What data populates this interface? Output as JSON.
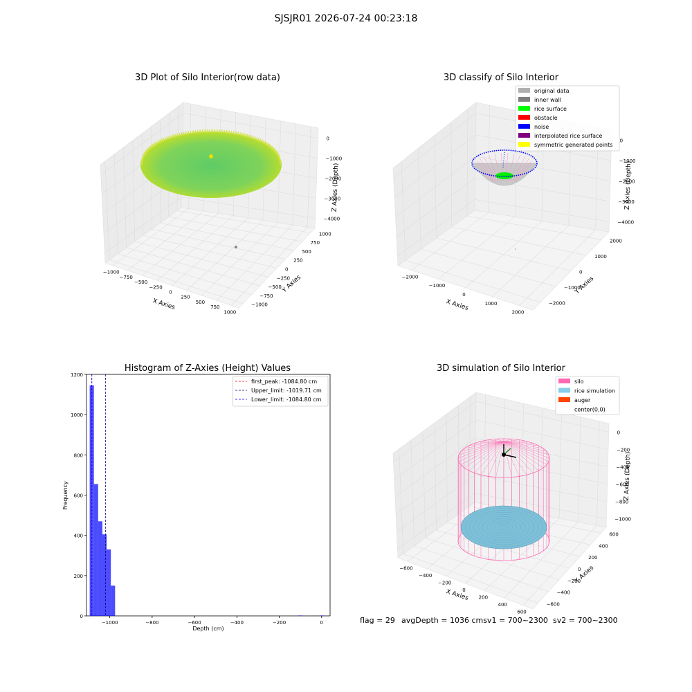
{
  "suptitle": "SJSJR01 2026-07-24 00:23:18",
  "footer": {
    "flag": "flag = 29",
    "avg": "avgDepth = 1036 cmsv1 = 700~2300",
    "sv2": "sv2 = 700~2300"
  },
  "chart_data": [
    {
      "type": "scatter",
      "title": "3D Plot of Silo Interior(row data)",
      "xlabel": "X Axies",
      "ylabel": "Y Axies",
      "zlabel": "Z Axies (Depth)",
      "xticks": [
        "−1000",
        "−750",
        "−500",
        "−250",
        "0",
        "250",
        "500",
        "750",
        "1000"
      ],
      "yticks": [
        "−1000",
        "−750",
        "−500",
        "−250",
        "0",
        "250",
        "500",
        "750",
        "1000"
      ],
      "zticks": [
        "0",
        "−1000",
        "−2000",
        "−3000",
        "−4000"
      ],
      "colors": {
        "center": "#5fcc66",
        "edge": "#c8e020",
        "outlier": "#888888"
      },
      "description_values": {
        "surface_depth_approx": -1050,
        "outlier_depth_approx": -4300
      }
    },
    {
      "type": "scatter",
      "title": "3D classify of Silo Interior",
      "xlabel": "X Axies",
      "ylabel": "Y Axies",
      "zlabel": "Z Axies (Depth)",
      "xticks": [
        "−2000",
        "−1000",
        "0",
        "1000",
        "2000"
      ],
      "yticks": [
        "−2000",
        "−1000",
        "0",
        "1000",
        "2000"
      ],
      "zticks": [
        "0",
        "−1000",
        "−2000",
        "−3000",
        "−4000"
      ],
      "legend": [
        {
          "label": "original data",
          "color": "#b0b0b0"
        },
        {
          "label": "inner wall",
          "color": "#808080"
        },
        {
          "label": "rice surface",
          "color": "#00ff00"
        },
        {
          "label": "obstacle",
          "color": "#ff0000"
        },
        {
          "label": "noise",
          "color": "#0000ff"
        },
        {
          "label": "interpolated rice surface",
          "color": "#800080"
        },
        {
          "label": "symmetric generated points",
          "color": "#ffff00"
        }
      ],
      "legend_position": "top-right"
    },
    {
      "type": "bar",
      "title": "Histogram of Z-Axies (Height) Values",
      "xlabel": "Depth (cm)",
      "ylabel": "Frequency",
      "xlim": [
        -1110,
        40
      ],
      "ylim": [
        0,
        1200
      ],
      "xticks": [
        -1000,
        -800,
        -600,
        -400,
        -200,
        0
      ],
      "yticks": [
        0,
        200,
        400,
        600,
        800,
        1000,
        1200
      ],
      "bin_width": 20,
      "bars": [
        {
          "x": -1085,
          "value": 1145
        },
        {
          "x": -1065,
          "value": 655
        },
        {
          "x": -1045,
          "value": 470
        },
        {
          "x": -1025,
          "value": 405
        },
        {
          "x": -1005,
          "value": 330
        },
        {
          "x": -985,
          "value": 150
        },
        {
          "x": -100,
          "value": 2
        },
        {
          "x": 0,
          "value": 2
        }
      ],
      "bar_color": "#0000ff",
      "vlines": [
        {
          "label": "first_peak: -1084.80 cm",
          "x": -1084.8,
          "color": "#ff0000"
        },
        {
          "label": "Upper_limit: -1019.71 cm",
          "x": -1019.71,
          "color": "#000080"
        },
        {
          "label": "Lower_limit: -1084.80 cm",
          "x": -1084.8,
          "color": "#0000ff"
        }
      ],
      "legend_position": "top-right"
    },
    {
      "type": "scatter",
      "title": "3D simulation of Silo Interior",
      "xlabel": "X Axies",
      "ylabel": "Y Axies",
      "zlabel": "Z Axies (Depth)",
      "xticks": [
        "−600",
        "−400",
        "−200",
        "0",
        "200",
        "400",
        "600"
      ],
      "yticks": [
        "−600",
        "−400",
        "−200",
        "0",
        "200",
        "400",
        "600"
      ],
      "zticks": [
        "0",
        "−200",
        "−400",
        "−600",
        "−800",
        "−1000"
      ],
      "legend": [
        {
          "label": "silo",
          "color": "#ff69b4"
        },
        {
          "label": "rice simulation",
          "color": "#87ceeb"
        },
        {
          "label": "auger",
          "color": "#ff4500"
        },
        {
          "label": "center(0,0)",
          "color": "#ffffff"
        }
      ],
      "legend_position": "top-right"
    }
  ]
}
